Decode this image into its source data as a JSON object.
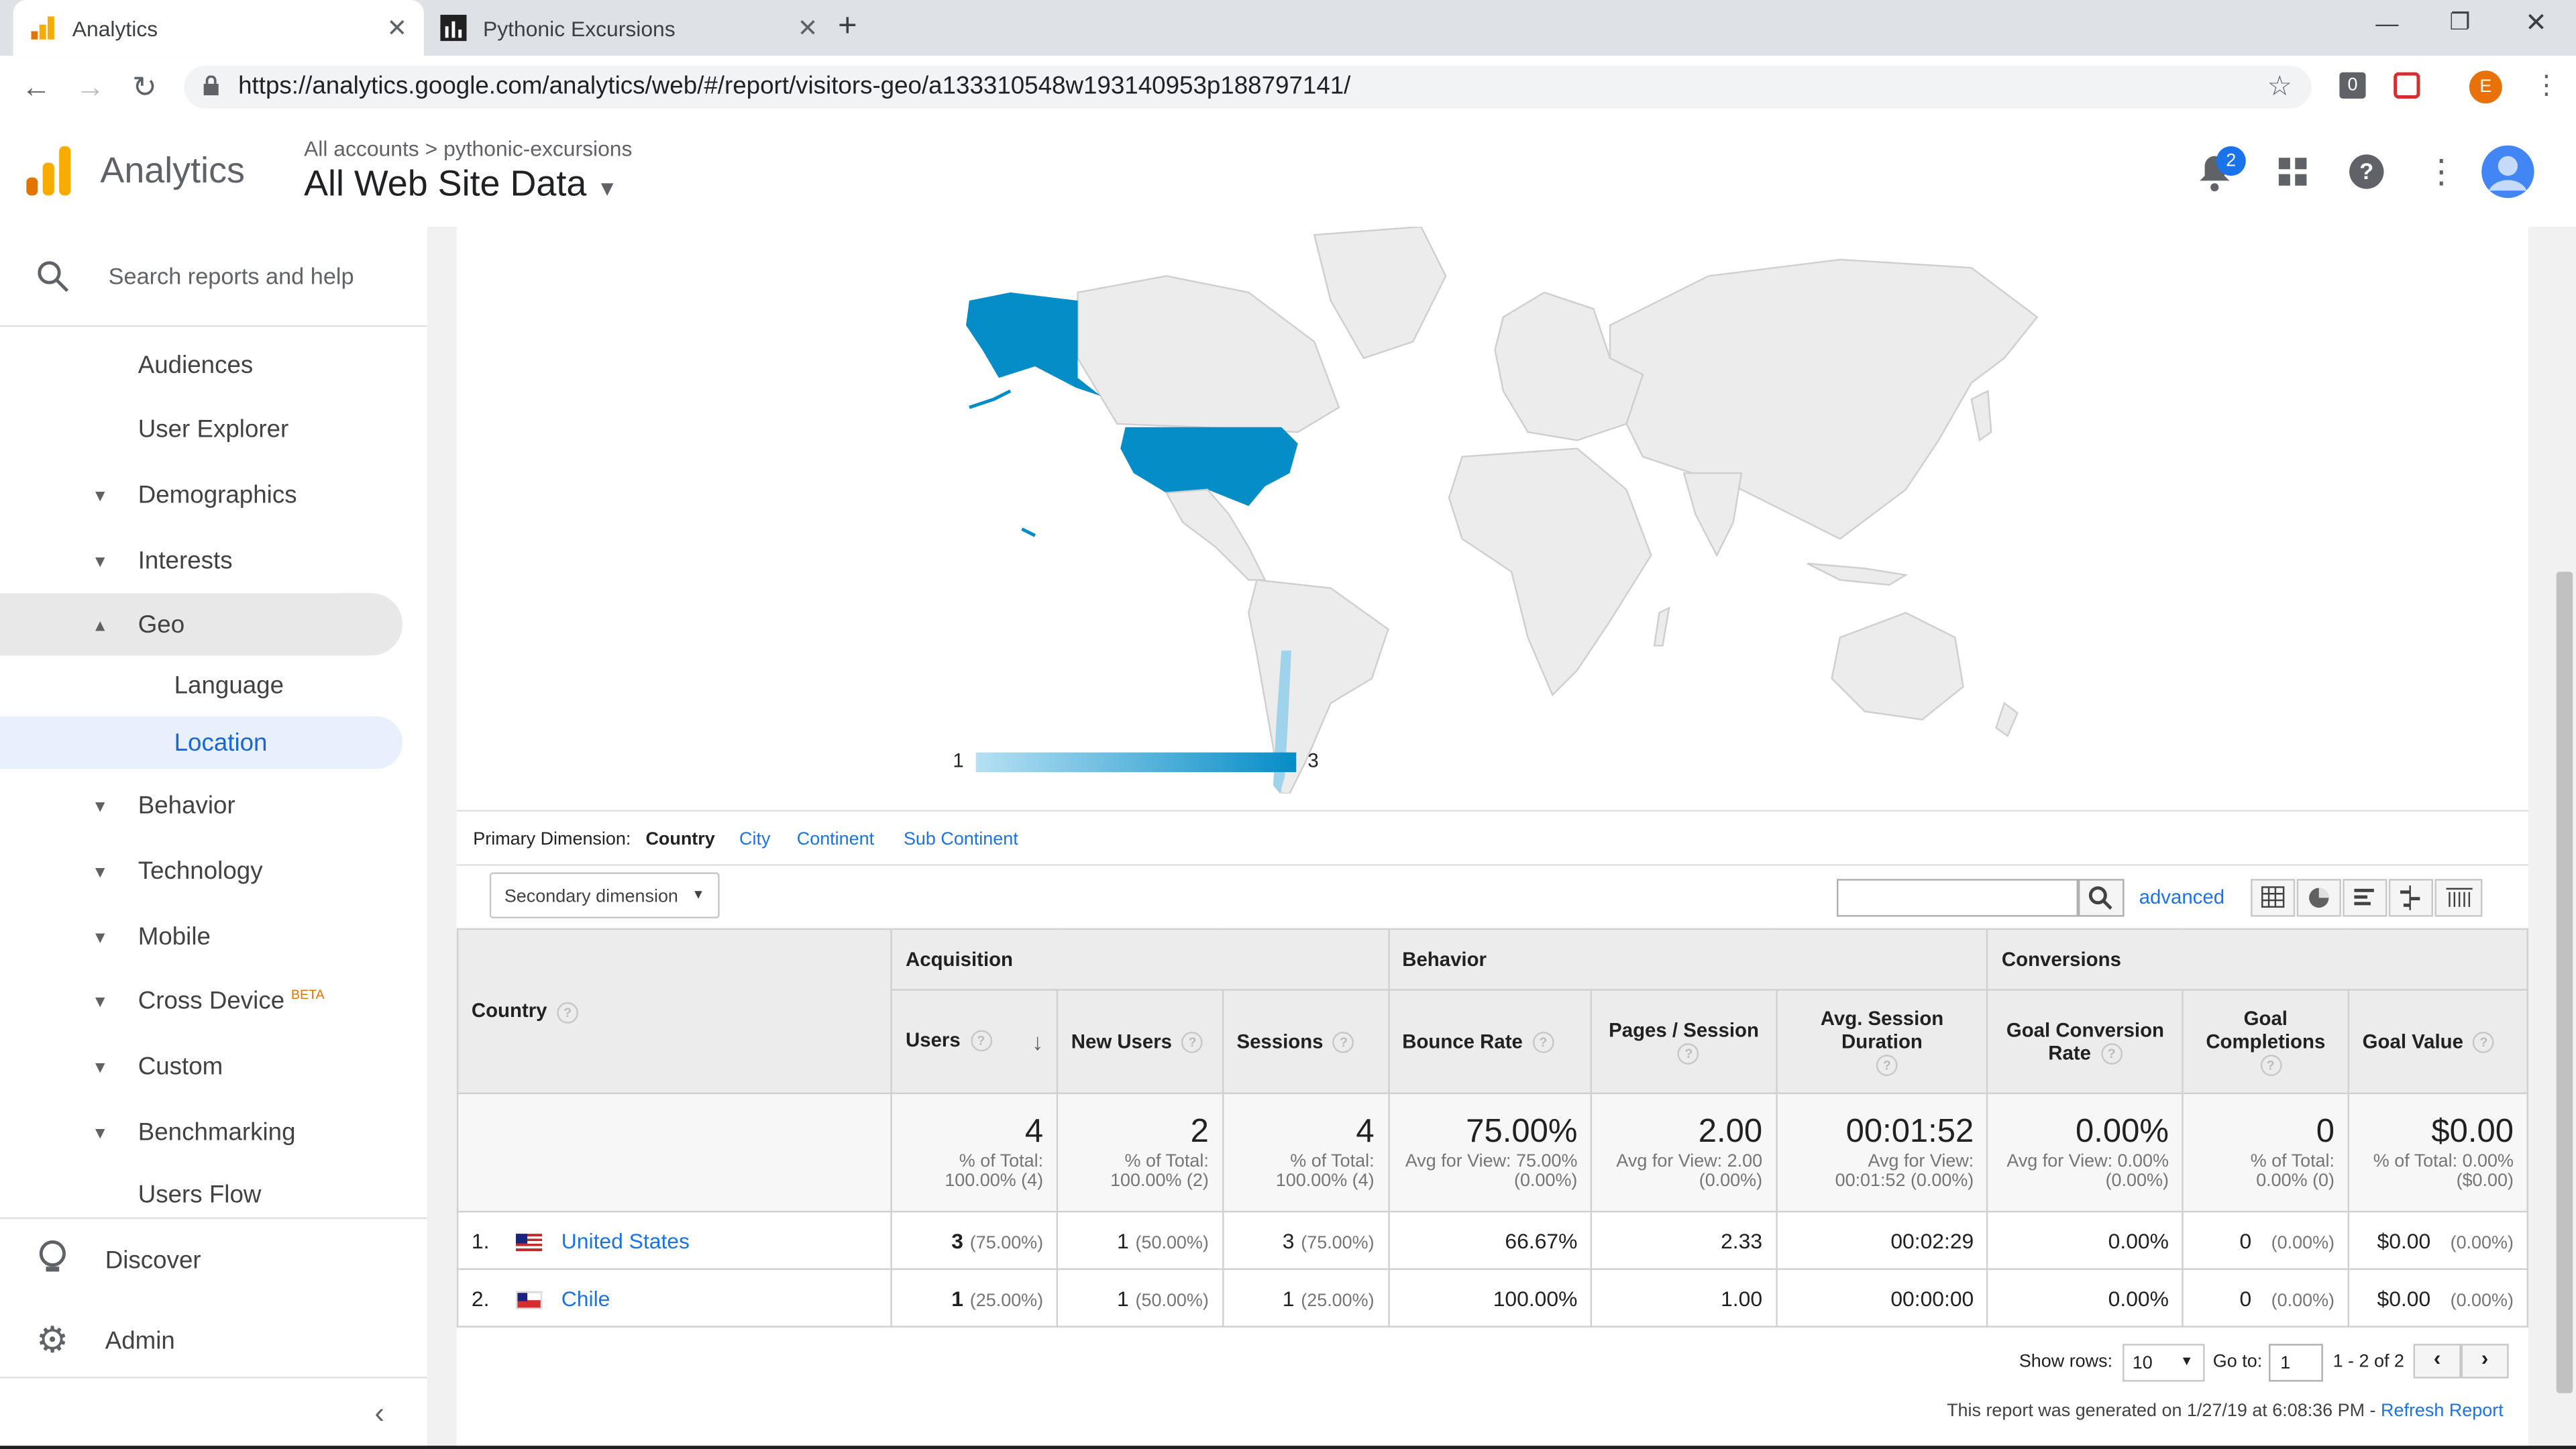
{
  "browser": {
    "tabs": [
      {
        "title": "Analytics"
      },
      {
        "title": "Pythonic Excursions"
      }
    ],
    "url": "https://analytics.google.com/analytics/web/#/report/visitors-geo/a133310548w193140953p188797141/",
    "profile_initial": "E",
    "extension_badge": "0"
  },
  "header": {
    "app_name": "Analytics",
    "breadcrumb_root": "All accounts",
    "breadcrumb_sep": ">",
    "breadcrumb_account": "pythonic-excursions",
    "property": "All Web Site Data",
    "notification_count": "2"
  },
  "sidebar": {
    "search_placeholder": "Search reports and help",
    "items": [
      {
        "label": "Audiences"
      },
      {
        "label": "User Explorer"
      },
      {
        "label": "Demographics"
      },
      {
        "label": "Interests"
      },
      {
        "label": "Geo"
      },
      {
        "label": "Language"
      },
      {
        "label": "Location"
      },
      {
        "label": "Behavior"
      },
      {
        "label": "Technology"
      },
      {
        "label": "Mobile"
      },
      {
        "label": "Cross Device"
      },
      {
        "label": "Custom"
      },
      {
        "label": "Benchmarking"
      },
      {
        "label": "Users Flow"
      }
    ],
    "beta_badge": "BETA",
    "discover": "Discover",
    "admin": "Admin"
  },
  "map": {
    "legend_min": "1",
    "legend_max": "3"
  },
  "dimension": {
    "label": "Primary Dimension:",
    "active": "Country",
    "links": [
      "City",
      "Continent",
      "Sub Continent"
    ],
    "secondary": "Secondary dimension",
    "advanced": "advanced"
  },
  "table": {
    "groups": {
      "acquisition": "Acquisition",
      "behavior": "Behavior",
      "conversions": "Conversions"
    },
    "col_country": "Country",
    "columns": [
      "Users",
      "New Users",
      "Sessions",
      "Bounce Rate",
      "Pages / Session",
      "Avg. Session Duration",
      "Goal Conversion Rate",
      "Goal Completions",
      "Goal Value"
    ],
    "totals": [
      {
        "value": "4",
        "sub1": "% of Total:",
        "sub2": "100.00% (4)"
      },
      {
        "value": "2",
        "sub1": "% of Total:",
        "sub2": "100.00% (2)"
      },
      {
        "value": "4",
        "sub1": "% of Total:",
        "sub2": "100.00% (4)"
      },
      {
        "value": "75.00%",
        "sub1": "Avg for View: 75.00%",
        "sub2": "(0.00%)"
      },
      {
        "value": "2.00",
        "sub1": "Avg for View: 2.00",
        "sub2": "(0.00%)"
      },
      {
        "value": "00:01:52",
        "sub1": "Avg for View:",
        "sub2": "00:01:52 (0.00%)"
      },
      {
        "value": "0.00%",
        "sub1": "Avg for View: 0.00%",
        "sub2": "(0.00%)"
      },
      {
        "value": "0",
        "sub1": "% of Total:",
        "sub2": "0.00% (0)"
      },
      {
        "value": "$0.00",
        "sub1": "% of Total: 0.00%",
        "sub2": "($0.00)"
      }
    ],
    "rows": [
      {
        "index": "1.",
        "country": "United States",
        "users": "3",
        "users_pct": "(75.00%)",
        "new_users": "1",
        "new_users_pct": "(50.00%)",
        "sessions": "3",
        "sessions_pct": "(75.00%)",
        "bounce": "66.67%",
        "pages": "2.33",
        "duration": "00:02:29",
        "conv_rate": "0.00%",
        "completions": "0",
        "completions_pct": "(0.00%)",
        "value": "$0.00",
        "value_pct": "(0.00%)"
      },
      {
        "index": "2.",
        "country": "Chile",
        "users": "1",
        "users_pct": "(25.00%)",
        "new_users": "1",
        "new_users_pct": "(50.00%)",
        "sessions": "1",
        "sessions_pct": "(25.00%)",
        "bounce": "100.00%",
        "pages": "1.00",
        "duration": "00:00:00",
        "conv_rate": "0.00%",
        "completions": "0",
        "completions_pct": "(0.00%)",
        "value": "$0.00",
        "value_pct": "(0.00%)"
      }
    ]
  },
  "pagination": {
    "show_rows_label": "Show rows:",
    "show_rows_value": "10",
    "goto_label": "Go to:",
    "goto_value": "1",
    "range": "1 - 2 of 2"
  },
  "footer": {
    "generated": "This report was generated on 1/27/19 at 6:08:36 PM -",
    "refresh": "Refresh Report"
  },
  "colors": {
    "accent": "#1a73e8",
    "map_fill": "#058dc7",
    "ga_orange": "#f9ab00"
  }
}
